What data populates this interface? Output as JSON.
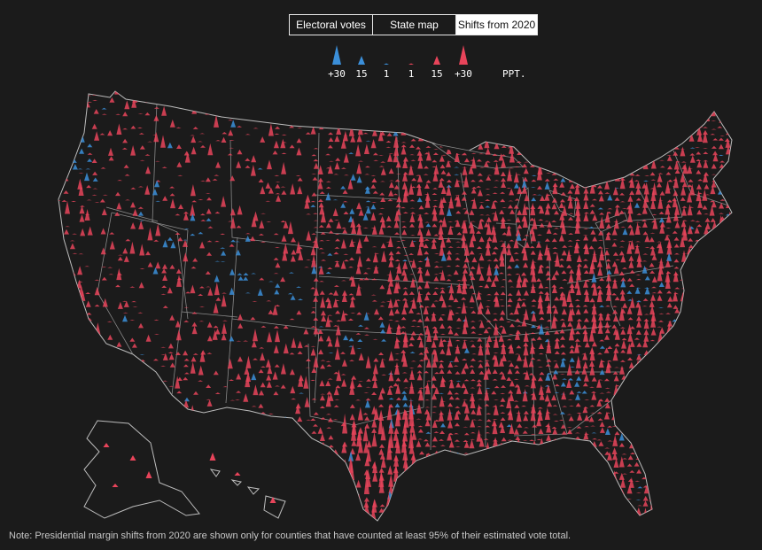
{
  "tabs": [
    {
      "label": "Electoral votes",
      "active": false
    },
    {
      "label": "State map",
      "active": false
    },
    {
      "label": "Shifts from 2020",
      "active": true
    }
  ],
  "legend": {
    "items": [
      {
        "label": "+30",
        "party": "dem",
        "magnitude": 30
      },
      {
        "label": "15",
        "party": "dem",
        "magnitude": 15
      },
      {
        "label": "1",
        "party": "dem",
        "magnitude": 1
      },
      {
        "label": "1",
        "party": "rep",
        "magnitude": 1
      },
      {
        "label": "15",
        "party": "rep",
        "magnitude": 15
      },
      {
        "label": "+30",
        "party": "rep",
        "magnitude": 30
      }
    ],
    "unit": "PPT."
  },
  "colors": {
    "dem": "#3b8fd9",
    "rep": "#e8445a",
    "background": "#1b1b1b",
    "borders": "#a9a9a9"
  },
  "note": "Note: Presidential margin shifts from 2020 are shown only for counties that have counted at least 95% of their estimated vote total."
}
